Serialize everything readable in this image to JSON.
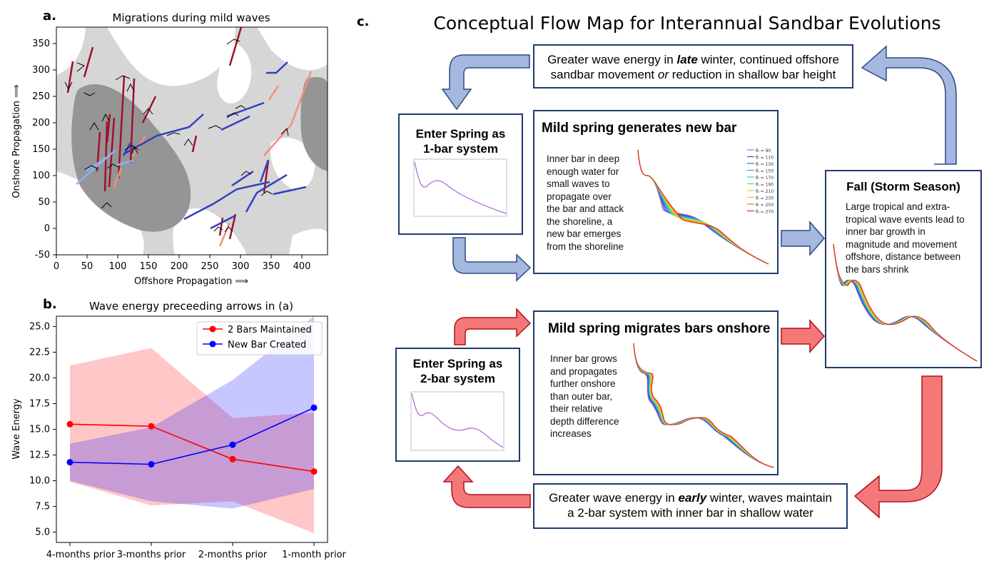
{
  "panel_a": {
    "letter": "a.",
    "chart_data": {
      "type": "scatter",
      "title": "Migrations during mild waves",
      "xlabel": "Offshore Propagation ⟹",
      "ylabel": "Onshore Propagation ⟹",
      "xlim": [
        0,
        440
      ],
      "ylim": [
        -50,
        380
      ],
      "xticks": [
        "0",
        "50",
        "100",
        "150",
        "200",
        "250",
        "300",
        "350",
        "400"
      ],
      "yticks": [
        "-50",
        "0",
        "50",
        "100",
        "150",
        "200",
        "250",
        "300",
        "350"
      ],
      "grid": false,
      "colors": {
        "dark_red": "#a0102a",
        "salmon": "#f0907a",
        "blue": "#3040c0",
        "light_blue": "#8eb0f0"
      }
    }
  },
  "panel_b": {
    "letter": "b.",
    "chart_data": {
      "type": "line",
      "title": "Wave energy preceeding arrows in (a)",
      "ylabel": "Wave Energy",
      "xlabel": "",
      "categories": [
        "4-months prior",
        "3-months prior",
        "2-months prior",
        "1-month prior"
      ],
      "ylim": [
        4,
        26
      ],
      "yticks": [
        "5.0",
        "7.5",
        "10.0",
        "12.5",
        "15.0",
        "17.5",
        "20.0",
        "22.5",
        "25.0"
      ],
      "legend_position": "top-right",
      "series": [
        {
          "name": "2 Bars Maintained",
          "color": "#ff0000",
          "values": [
            15.5,
            15.3,
            12.1,
            10.9
          ],
          "band_upper": [
            21.2,
            22.9,
            16.1,
            16.6
          ],
          "band_lower": [
            9.9,
            7.6,
            8.0,
            4.9
          ]
        },
        {
          "name": "New Bar Created",
          "color": "#0000ff",
          "values": [
            11.8,
            11.6,
            13.5,
            17.1
          ],
          "band_upper": [
            13.6,
            15.2,
            19.8,
            26.0
          ],
          "band_lower": [
            10.0,
            8.0,
            7.3,
            9.2
          ]
        }
      ]
    }
  },
  "panel_c": {
    "letter": "c.",
    "title": "Conceptual Flow Map for Interannual Sandbar Evolutions",
    "top_box": {
      "pre": "Greater wave energy in ",
      "em": "late",
      "post": " winter, continued offshore",
      "line2_pre": "sandbar movement ",
      "line2_em": "or",
      "line2_post": " reduction in shallow bar height"
    },
    "bottom_box": {
      "pre": "Greater wave energy in ",
      "em": "early",
      "post": " winter, waves maintain",
      "line2": "a 2-bar system with inner bar in shallow water"
    },
    "enter_1bar": {
      "title_line1": "Enter Spring as",
      "title_line2": "1-bar system"
    },
    "enter_2bar": {
      "title_line1": "Enter Spring as",
      "title_line2": "2-bar system"
    },
    "mild_new": {
      "title": "Mild spring generates new bar",
      "body": [
        "Inner bar in deep",
        "enough water for",
        "small waves to",
        "propagate over",
        "the bar and attack",
        "the shoreline, a",
        "new bar emerges",
        "from the shoreline"
      ],
      "legend": [
        "θᵢ = 90",
        "θᵢ = 110",
        "θᵢ = 130",
        "θᵢ = 150",
        "θᵢ = 170",
        "θᵢ = 190",
        "θᵢ = 210",
        "θᵢ = 230",
        "θᵢ = 250",
        "θᵢ = 270"
      ]
    },
    "mild_migrate": {
      "title": "Mild spring migrates bars onshore",
      "body": [
        "Inner bar grows",
        "and propagates",
        "further onshore",
        "than outer bar,",
        "their relative",
        "depth difference",
        "increases"
      ]
    },
    "fall": {
      "title": "Fall (Storm Season)",
      "body": [
        "Large tropical and extra-",
        "tropical wave events lead to",
        "inner bar growth in",
        "magnitude and movement",
        "offshore, distance between",
        "the bars shrink"
      ]
    },
    "colors": {
      "blue_arrow": "#a4b8e0",
      "red_arrow": "#f57878",
      "box_border": "#1f3a6e"
    }
  }
}
